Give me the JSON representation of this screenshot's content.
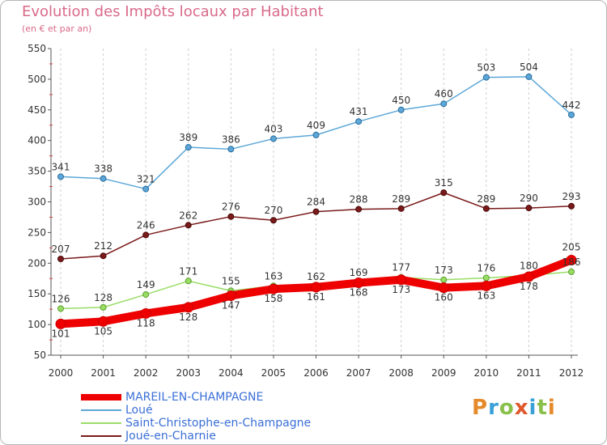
{
  "title": "Evolution des Impôts locaux par Habitant",
  "subtitle": "(en € et par an)",
  "logo": {
    "text": "Proxiti",
    "colors": [
      "#e58a2a",
      "#3aa0d8",
      "#88c04a",
      "#e0582a",
      "#3aa0d8",
      "#88c04a",
      "#e58a2a"
    ]
  },
  "chart_data": {
    "type": "line",
    "title": "Evolution des Impôts locaux par Habitant",
    "subtitle": "(en € et par an)",
    "xlabel": "",
    "ylabel": "",
    "ylim": [
      50,
      550
    ],
    "yticks": [
      50,
      100,
      150,
      200,
      250,
      300,
      350,
      400,
      450,
      500,
      550
    ],
    "grid": "vertical dashed lines at each year",
    "legend_placement": "bottom-left",
    "x": [
      "2000",
      "2001",
      "2002",
      "2003",
      "2004",
      "2005",
      "2006",
      "2007",
      "2008",
      "2009",
      "2010",
      "2011",
      "2012"
    ],
    "series": [
      {
        "name": "MAREIL-EN-CHAMPAGNE",
        "color": "#ee0000",
        "values": [
          101,
          105,
          118,
          128,
          147,
          158,
          161,
          168,
          173,
          160,
          163,
          178,
          205
        ]
      },
      {
        "name": "Loué",
        "color": "#5ca7d8",
        "values": [
          341,
          338,
          321,
          389,
          386,
          403,
          409,
          431,
          450,
          460,
          503,
          504,
          442
        ]
      },
      {
        "name": "Saint-Christophe-en-Champagne",
        "color": "#99dd66",
        "values": [
          126,
          128,
          149,
          171,
          155,
          163,
          162,
          169,
          177,
          173,
          176,
          180,
          186
        ]
      },
      {
        "name": "Joué-en-Charnie",
        "color": "#7a1a1a",
        "values": [
          207,
          212,
          246,
          262,
          276,
          270,
          284,
          288,
          289,
          315,
          289,
          290,
          293
        ]
      }
    ]
  }
}
